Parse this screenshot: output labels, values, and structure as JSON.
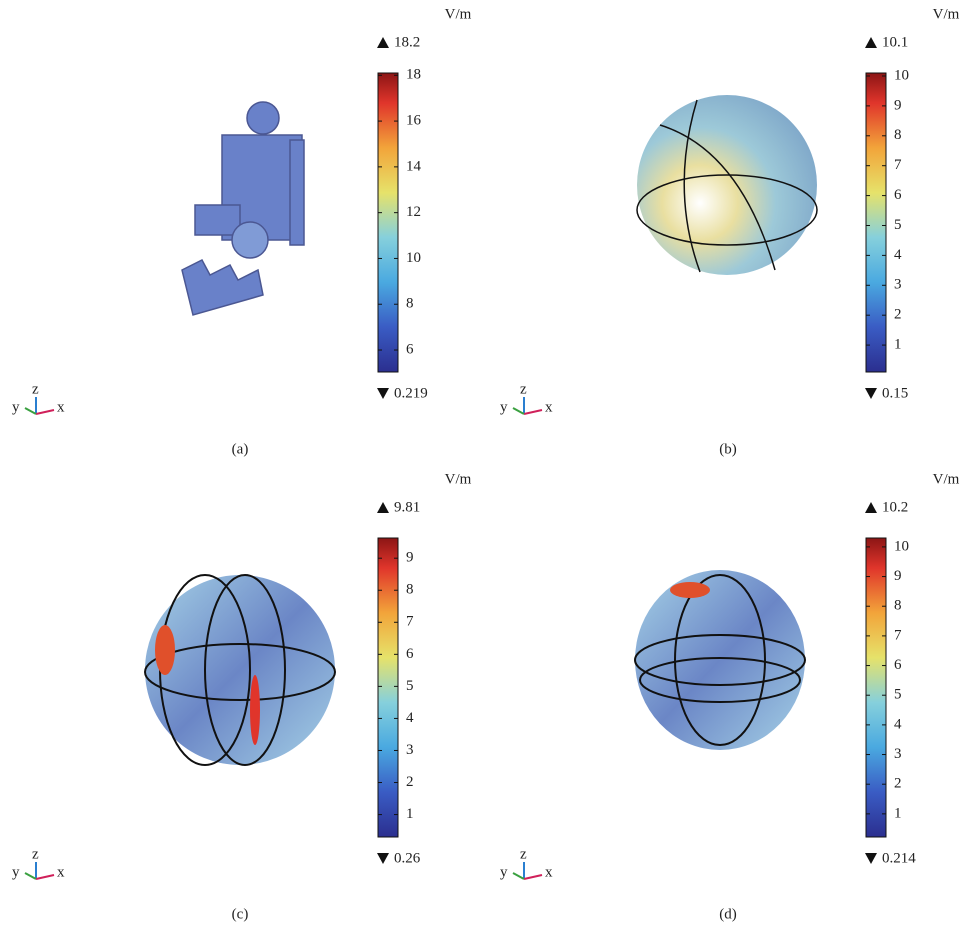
{
  "panels": [
    {
      "unit": "V/m",
      "max": "18.2",
      "min": "0.219",
      "range": [
        5.04,
        18.1
      ],
      "ticks": [
        6,
        8,
        10,
        12,
        14,
        16,
        18
      ],
      "triad": [
        "y",
        "z",
        "x"
      ],
      "caption": "(a)"
    },
    {
      "unit": "V/m",
      "max": "10.1",
      "min": "0.15",
      "range": [
        0.1,
        10.1
      ],
      "ticks": [
        1,
        2,
        3,
        4,
        5,
        6,
        7,
        8,
        9,
        10
      ],
      "triad": [
        "y",
        "z",
        "x"
      ],
      "caption": "(b)"
    },
    {
      "unit": "V/m",
      "max": "9.81",
      "min": "0.26",
      "range": [
        0.3,
        9.63
      ],
      "ticks": [
        1,
        2,
        3,
        4,
        5,
        6,
        7,
        8,
        9
      ],
      "triad": [
        "y",
        "z",
        "x"
      ],
      "caption": "(c)"
    },
    {
      "unit": "V/m",
      "max": "10.2",
      "min": "0.214",
      "range": [
        0.22,
        10.3
      ],
      "ticks": [
        1,
        2,
        3,
        4,
        5,
        6,
        7,
        8,
        9,
        10
      ],
      "triad": [
        "y",
        "z",
        "x"
      ],
      "caption": "(d)"
    }
  ]
}
